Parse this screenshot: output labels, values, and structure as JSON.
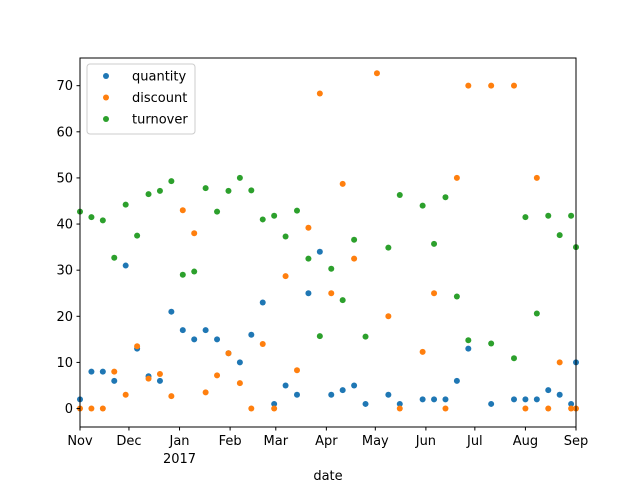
{
  "chart_data": {
    "type": "scatter",
    "xlabel": "date",
    "ylabel": "",
    "x_range": [
      "2016-11-01",
      "2017-09-01"
    ],
    "ylim": [
      -4,
      76
    ],
    "yticks": [
      0,
      10,
      20,
      30,
      40,
      50,
      60,
      70
    ],
    "xticks": [
      {
        "date": "2016-11-01",
        "label": "Nov",
        "sublabel": ""
      },
      {
        "date": "2016-12-01",
        "label": "Dec",
        "sublabel": ""
      },
      {
        "date": "2017-01-01",
        "label": "Jan",
        "sublabel": "2017"
      },
      {
        "date": "2017-02-01",
        "label": "Feb",
        "sublabel": ""
      },
      {
        "date": "2017-03-01",
        "label": "Mar",
        "sublabel": ""
      },
      {
        "date": "2017-04-01",
        "label": "Apr",
        "sublabel": ""
      },
      {
        "date": "2017-05-01",
        "label": "May",
        "sublabel": ""
      },
      {
        "date": "2017-06-01",
        "label": "Jun",
        "sublabel": ""
      },
      {
        "date": "2017-07-01",
        "label": "Jul",
        "sublabel": ""
      },
      {
        "date": "2017-08-01",
        "label": "Aug",
        "sublabel": ""
      },
      {
        "date": "2017-09-01",
        "label": "Sep",
        "sublabel": ""
      }
    ],
    "grid": false,
    "legend_position": "top-left",
    "x": [
      "2016-11-01",
      "2016-11-08",
      "2016-11-15",
      "2016-11-22",
      "2016-11-29",
      "2016-12-06",
      "2016-12-13",
      "2016-12-20",
      "2016-12-27",
      "2017-01-03",
      "2017-01-10",
      "2017-01-17",
      "2017-01-24",
      "2017-01-31",
      "2017-02-07",
      "2017-02-14",
      "2017-02-21",
      "2017-02-28",
      "2017-03-07",
      "2017-03-14",
      "2017-03-21",
      "2017-03-28",
      "2017-04-04",
      "2017-04-11",
      "2017-04-18",
      "2017-04-25",
      "2017-05-02",
      "2017-05-09",
      "2017-05-16",
      "2017-05-23",
      "2017-05-30",
      "2017-06-06",
      "2017-06-13",
      "2017-06-20",
      "2017-06-27",
      "2017-07-04",
      "2017-07-11",
      "2017-07-18",
      "2017-07-25",
      "2017-08-01",
      "2017-08-08",
      "2017-08-15",
      "2017-08-22",
      "2017-08-29",
      "2017-09-01"
    ],
    "series": [
      {
        "name": "quantity",
        "color": "#1f77b4",
        "values": [
          2,
          8,
          8,
          6,
          31,
          13,
          7,
          6,
          21,
          17,
          15,
          17,
          15,
          12,
          10,
          16,
          23,
          1,
          5,
          3,
          25,
          34,
          3,
          4,
          5,
          1,
          null,
          3,
          1,
          null,
          2,
          2,
          2,
          6,
          13,
          null,
          1,
          null,
          2,
          2,
          2,
          4,
          3,
          1,
          10
        ]
      },
      {
        "name": "discount",
        "color": "#ff7f0e",
        "values": [
          0,
          0,
          0,
          8,
          3,
          13.5,
          6.5,
          7.5,
          2.7,
          43,
          38,
          3.5,
          7.2,
          12,
          5.5,
          0,
          14,
          0,
          28.7,
          8.3,
          39.2,
          68.3,
          25,
          48.7,
          32.5,
          null,
          72.7,
          20,
          0,
          null,
          12.3,
          25,
          0,
          50,
          70,
          null,
          70,
          null,
          70,
          0,
          50,
          0,
          10,
          0,
          0
        ]
      },
      {
        "name": "turnover",
        "color": "#2ca02c",
        "values": [
          42.7,
          41.5,
          40.8,
          32.7,
          44.2,
          37.5,
          46.5,
          47.2,
          49.3,
          29,
          29.7,
          47.8,
          42.7,
          47.2,
          50,
          47.3,
          41,
          41.8,
          37.3,
          42.9,
          32.5,
          15.7,
          30.3,
          23.5,
          36.6,
          15.6,
          null,
          34.9,
          46.3,
          null,
          44,
          35.7,
          45.8,
          24.3,
          14.8,
          null,
          14.1,
          null,
          10.9,
          41.5,
          20.6,
          41.8,
          37.6,
          41.8,
          35
        ]
      }
    ]
  }
}
